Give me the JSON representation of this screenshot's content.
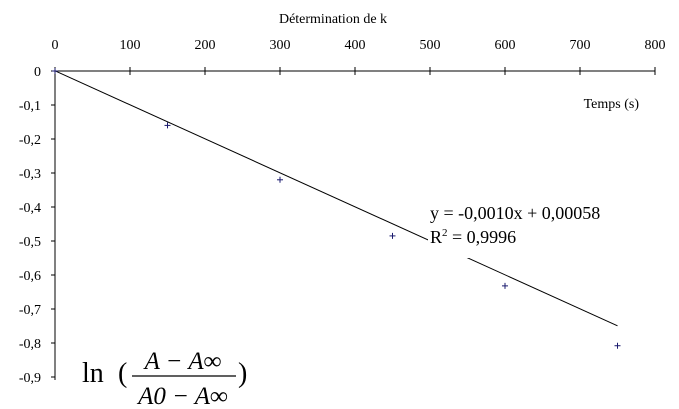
{
  "chart_data": {
    "type": "scatter",
    "title": "Détermination de k",
    "xlabel": "Temps (s)",
    "ylabel_formula": {
      "fn": "ln",
      "numerator": "A − A∞",
      "denominator": "A0 − A∞"
    },
    "xlim": [
      0,
      800
    ],
    "ylim": [
      -0.9,
      0
    ],
    "x_ticks": [
      0,
      100,
      200,
      300,
      400,
      500,
      600,
      700,
      800
    ],
    "x_tick_labels": [
      "0",
      "100",
      "200",
      "300",
      "400",
      "500",
      "600",
      "700",
      "800"
    ],
    "y_ticks": [
      0,
      -0.1,
      -0.2,
      -0.3,
      -0.4,
      -0.5,
      -0.6,
      -0.7,
      -0.8,
      -0.9
    ],
    "y_tick_labels": [
      "0",
      "-0,1",
      "-0,2",
      "-0,3",
      "-0,4",
      "-0,5",
      "-0,6",
      "-0,7",
      "-0,8",
      "-0,9"
    ],
    "x_axis_position": "top",
    "grid": false,
    "series": [
      {
        "x": [
          0,
          150,
          300,
          450,
          600,
          750
        ],
        "y": [
          0,
          -0.16,
          -0.32,
          -0.485,
          -0.632,
          -0.808
        ],
        "marker": "+"
      }
    ],
    "trendline": {
      "type": "linear",
      "slope": -0.001,
      "intercept": 0.00058,
      "x_range": [
        0,
        750
      ]
    },
    "annotations": {
      "equation": "y = -0,0010x + 0,00058",
      "r2_prefix": "R",
      "r2_exp": "2",
      "r2_value": " = 0,9996"
    }
  }
}
